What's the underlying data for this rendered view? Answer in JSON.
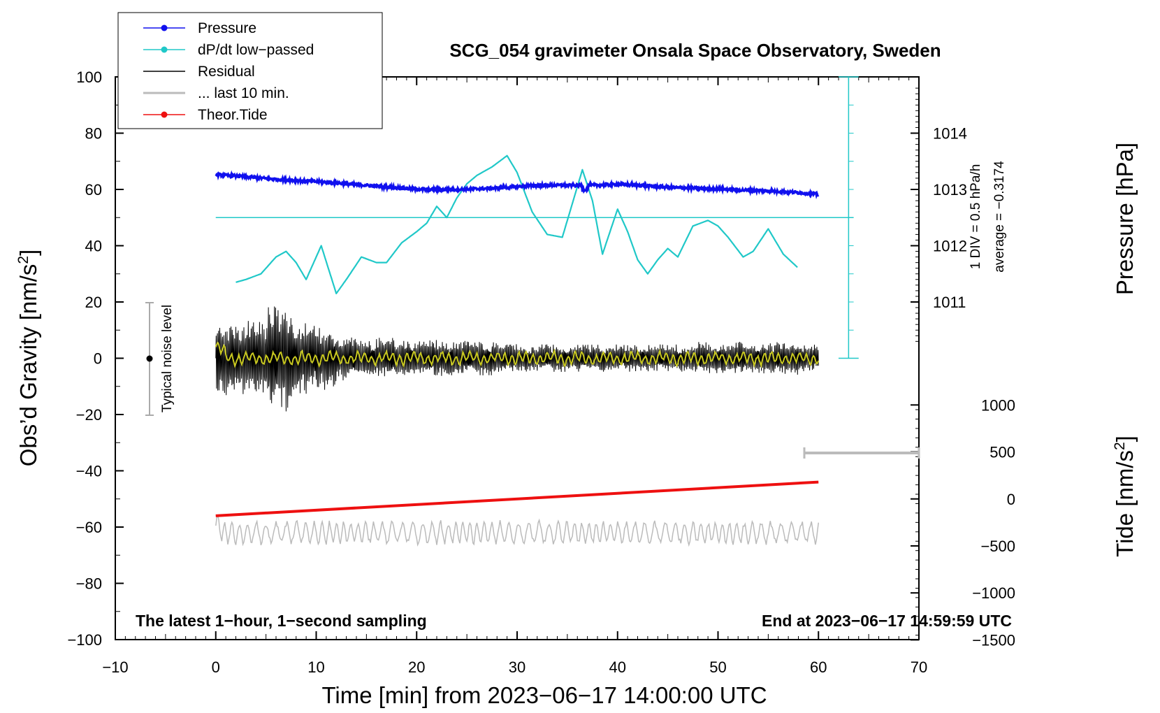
{
  "chart_data": {
    "type": "line",
    "title": "SCG_054 gravimeter Onsala Space Observatory, Sweden",
    "xlabel": "Time [min] from 2023−06−17 14:00:00 UTC",
    "ylabel_left": "Obs’d Gravity [nm/s",
    "ylabel_left_sup": "2",
    "ylabel_left_close": "]",
    "ylabel_right_pressure": "Pressure [hPa]",
    "ylabel_right_tide": "Tide [nm/s",
    "ylabel_right_tide_sup": "2",
    "ylabel_right_tide_close": "]",
    "xlim": [
      -10,
      70
    ],
    "ylim": [
      -100,
      100
    ],
    "x_ticks": [
      "−10",
      "0",
      "10",
      "20",
      "30",
      "40",
      "50",
      "60",
      "70"
    ],
    "x_tick_values": [
      -10,
      0,
      10,
      20,
      30,
      40,
      50,
      60,
      70
    ],
    "y_ticks": [
      "100",
      "80",
      "60",
      "40",
      "20",
      "0",
      "−20",
      "−40",
      "−60",
      "−80",
      "−100"
    ],
    "y_tick_values": [
      100,
      80,
      60,
      40,
      20,
      0,
      -20,
      -40,
      -60,
      -80,
      -100
    ],
    "pressure_ticks": [
      "1014",
      "1013",
      "1012",
      "1011"
    ],
    "pressure_tick_values": [
      1014,
      1013,
      1012,
      1011
    ],
    "pressure_axis_map": {
      "value_1013": 60,
      "per_hpa": 20
    },
    "tide_ticks": [
      "1000",
      "500",
      "0",
      "−500",
      "−1000",
      "−1500"
    ],
    "tide_tick_values": [
      1000,
      500,
      0,
      -500,
      -1000,
      -1500
    ],
    "tide_axis_map": {
      "value_0": -50,
      "per_500": 16.7
    },
    "legend": [
      {
        "label": "Pressure",
        "color": "#1010ee",
        "marker": true
      },
      {
        "label": "dP/dt low−passed",
        "color": "#20c8c8",
        "marker": true
      },
      {
        "label": "Residual",
        "color": "#000000",
        "marker": false
      },
      {
        "label": "... last 10 min.",
        "color": "#bbbbbb",
        "marker": false
      },
      {
        "label": "Theor.Tide",
        "color": "#ee1010",
        "marker": true
      }
    ],
    "series": [
      {
        "name": "Pressure",
        "color": "#1010ee",
        "x": [
          0,
          2,
          4,
          6,
          8,
          10,
          12,
          14,
          16,
          18,
          20,
          22,
          24,
          26,
          28,
          30,
          32,
          34,
          36,
          38,
          40,
          42,
          44,
          46,
          48,
          50,
          52,
          54,
          56,
          58,
          60
        ],
        "values": [
          65.2,
          64.8,
          64.2,
          63.6,
          63.2,
          62.8,
          62.3,
          61.7,
          61.2,
          60.6,
          60.1,
          59.9,
          60.0,
          60.2,
          60.5,
          61.0,
          61.4,
          61.5,
          61.4,
          61.5,
          61.8,
          61.5,
          61.0,
          60.6,
          60.4,
          60.2,
          59.8,
          59.6,
          59.3,
          58.9,
          58.2
        ]
      },
      {
        "name": "dP/dt low−passed",
        "color": "#20c8c8",
        "x": [
          2,
          3,
          4.5,
          6,
          7,
          8,
          9,
          10.5,
          12,
          13,
          14.5,
          16,
          17,
          18.5,
          20,
          21,
          22,
          23,
          24,
          25,
          26,
          27.5,
          29,
          30,
          31.5,
          33,
          34.5,
          35.5,
          36.5,
          37.5,
          38.5,
          40,
          41,
          42,
          43,
          44,
          45,
          46,
          47.5,
          49,
          50,
          51,
          52.5,
          53.5,
          55,
          56.5,
          58
        ],
        "values": [
          27,
          28,
          30,
          36,
          38,
          34,
          28,
          40,
          23,
          28,
          36,
          34,
          34,
          41,
          45,
          48,
          54,
          50,
          57,
          62,
          65,
          68,
          72,
          66,
          52,
          44,
          43,
          55,
          67,
          56,
          37,
          53,
          45,
          35,
          30,
          35,
          39,
          36,
          47,
          49,
          47,
          43,
          36,
          38,
          46,
          37,
          32
        ]
      },
      {
        "name": "Theor.Tide",
        "color": "#ee1010",
        "x": [
          0,
          60
        ],
        "values": [
          -56,
          -44
        ]
      }
    ],
    "dpdt_reference": 50,
    "scale_bar_label": "1 DIV = 0.5 hPa/h",
    "average_label": "average = −0.3174",
    "noise_label": "Typical noise level",
    "bottom_left_note": "The latest 1−hour, 1−second sampling",
    "bottom_right_note": "End at 2023−06−17 14:59:59 UTC",
    "residual_note": "Residual oscillates about 0 with amplitude ~±18 nm/s² early (0–12 min), decreasing to ~±5 nm/s² by 60 min; yellow smoothed trace ~±2 nm/s².",
    "gray_note": "Gray trace oscillates around −62 nm/s² with amplitude ~±5."
  }
}
